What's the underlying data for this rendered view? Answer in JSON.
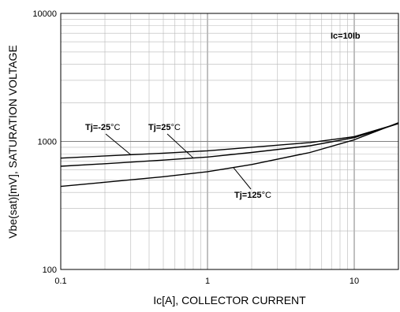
{
  "chart_data": {
    "type": "line",
    "xlabel": "Ic[A], COLLECTOR CURRENT",
    "ylabel": "Vbe(sat)[mV], SATURATION VOLTAGE",
    "xscale": "log",
    "yscale": "log",
    "xlim": [
      0.1,
      20
    ],
    "ylim": [
      100,
      10000
    ],
    "grid": true,
    "x_ticks": [
      {
        "value": 0.1,
        "label": "0.1"
      },
      {
        "value": 1,
        "label": "1"
      },
      {
        "value": 10,
        "label": "10"
      }
    ],
    "y_ticks": [
      {
        "value": 100,
        "label": "100"
      },
      {
        "value": 1000,
        "label": "1000"
      },
      {
        "value": 10000,
        "label": "10000"
      }
    ],
    "condition_label": "Ic=10Ib",
    "series": [
      {
        "name": "Tj=-25°C",
        "x": [
          0.1,
          0.2,
          0.5,
          1,
          2,
          5,
          10,
          20
        ],
        "y": [
          740,
          770,
          810,
          845,
          900,
          980,
          1090,
          1380
        ],
        "label": "Tj=-25",
        "label_unit": "°C"
      },
      {
        "name": "Tj=25°C",
        "x": [
          0.1,
          0.2,
          0.5,
          1,
          2,
          5,
          10,
          20
        ],
        "y": [
          640,
          670,
          715,
          755,
          820,
          925,
          1070,
          1380
        ],
        "label": "Tj=25",
        "label_unit": "°C"
      },
      {
        "name": "Tj=125°C",
        "x": [
          0.1,
          0.2,
          0.5,
          1,
          2,
          5,
          10,
          20
        ],
        "y": [
          445,
          480,
          530,
          580,
          660,
          820,
          1030,
          1400
        ],
        "label": "Tj=125",
        "label_unit": "°C"
      }
    ]
  }
}
